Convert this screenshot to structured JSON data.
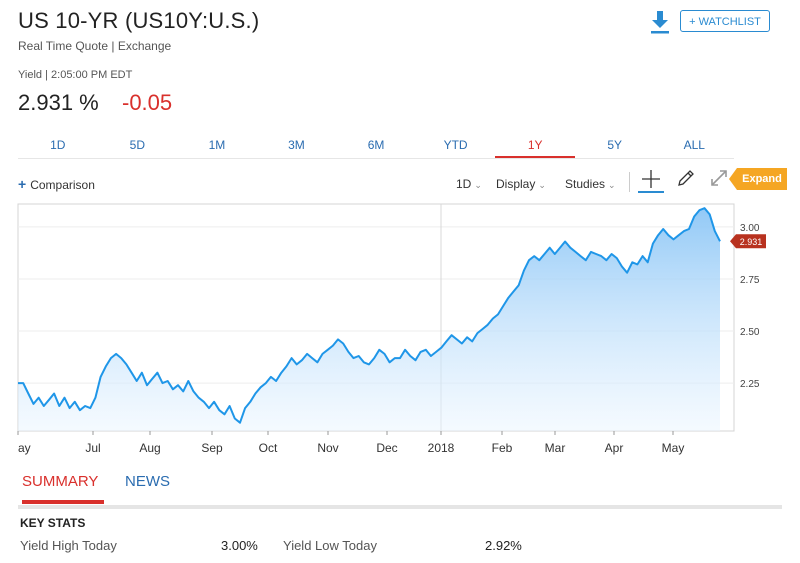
{
  "header": {
    "title": "US 10-YR (US10Y:U.S.)",
    "subtitle": "Real Time Quote | Exchange",
    "watchlist_label": "+ WATCHLIST",
    "yield_time": "Yield | 2:05:00 PM EDT",
    "price": "2.931 %",
    "change": "-0.05"
  },
  "range_tabs": [
    "1D",
    "5D",
    "1M",
    "3M",
    "6M",
    "YTD",
    "1Y",
    "5Y",
    "ALL"
  ],
  "active_range": "1Y",
  "toolbar": {
    "comparison": "Comparison",
    "interval": "1D",
    "display": "Display",
    "studies": "Studies",
    "expand": "Expand"
  },
  "colors": {
    "accent": "#2a8bd1",
    "negative": "#d9302c",
    "expand": "#f5a623",
    "line": "#1f96e8"
  },
  "icons": [
    "download-icon",
    "plus-icon",
    "crosshair-icon",
    "pencil-icon",
    "expand-icon"
  ],
  "chart_data": {
    "type": "area",
    "x_labels": [
      "ay",
      "Jul",
      "Aug",
      "Sep",
      "Oct",
      "Nov",
      "Dec",
      "2018",
      "Feb",
      "Mar",
      "Apr",
      "May"
    ],
    "y_ticks": [
      "3.00",
      "2.75",
      "2.50",
      "2.25"
    ],
    "ylim": [
      2.02,
      3.11
    ],
    "last_value_label": "2.931",
    "grid": true,
    "series": [
      {
        "values": [
          2.25,
          2.25,
          2.2,
          2.15,
          2.18,
          2.14,
          2.17,
          2.2,
          2.14,
          2.18,
          2.13,
          2.16,
          2.12,
          2.14,
          2.13,
          2.18,
          2.28,
          2.33,
          2.37,
          2.39,
          2.37,
          2.34,
          2.3,
          2.26,
          2.3,
          2.24,
          2.27,
          2.3,
          2.25,
          2.26,
          2.22,
          2.24,
          2.21,
          2.26,
          2.21,
          2.18,
          2.16,
          2.13,
          2.16,
          2.12,
          2.1,
          2.14,
          2.08,
          2.06,
          2.13,
          2.16,
          2.2,
          2.23,
          2.25,
          2.28,
          2.26,
          2.3,
          2.33,
          2.37,
          2.34,
          2.36,
          2.39,
          2.37,
          2.35,
          2.39,
          2.41,
          2.43,
          2.46,
          2.44,
          2.4,
          2.37,
          2.38,
          2.35,
          2.34,
          2.37,
          2.41,
          2.39,
          2.35,
          2.37,
          2.37,
          2.41,
          2.38,
          2.36,
          2.4,
          2.41,
          2.38,
          2.4,
          2.42,
          2.45,
          2.48,
          2.46,
          2.44,
          2.47,
          2.45,
          2.49,
          2.51,
          2.53,
          2.56,
          2.58,
          2.62,
          2.66,
          2.69,
          2.72,
          2.79,
          2.84,
          2.86,
          2.84,
          2.87,
          2.9,
          2.87,
          2.9,
          2.93,
          2.9,
          2.88,
          2.86,
          2.84,
          2.88,
          2.87,
          2.86,
          2.84,
          2.87,
          2.85,
          2.81,
          2.78,
          2.83,
          2.82,
          2.86,
          2.83,
          2.92,
          2.96,
          2.99,
          2.96,
          2.94,
          2.96,
          2.98,
          2.99,
          3.05,
          3.08,
          3.09,
          3.06,
          2.98,
          2.931
        ]
      }
    ]
  },
  "sections": {
    "tabs": [
      "SUMMARY",
      "NEWS"
    ],
    "key_stats_title": "KEY STATS",
    "stats": [
      {
        "label": "Yield High Today",
        "value": "3.00%"
      },
      {
        "label": "Yield Low Today",
        "value": "2.92%"
      }
    ]
  }
}
